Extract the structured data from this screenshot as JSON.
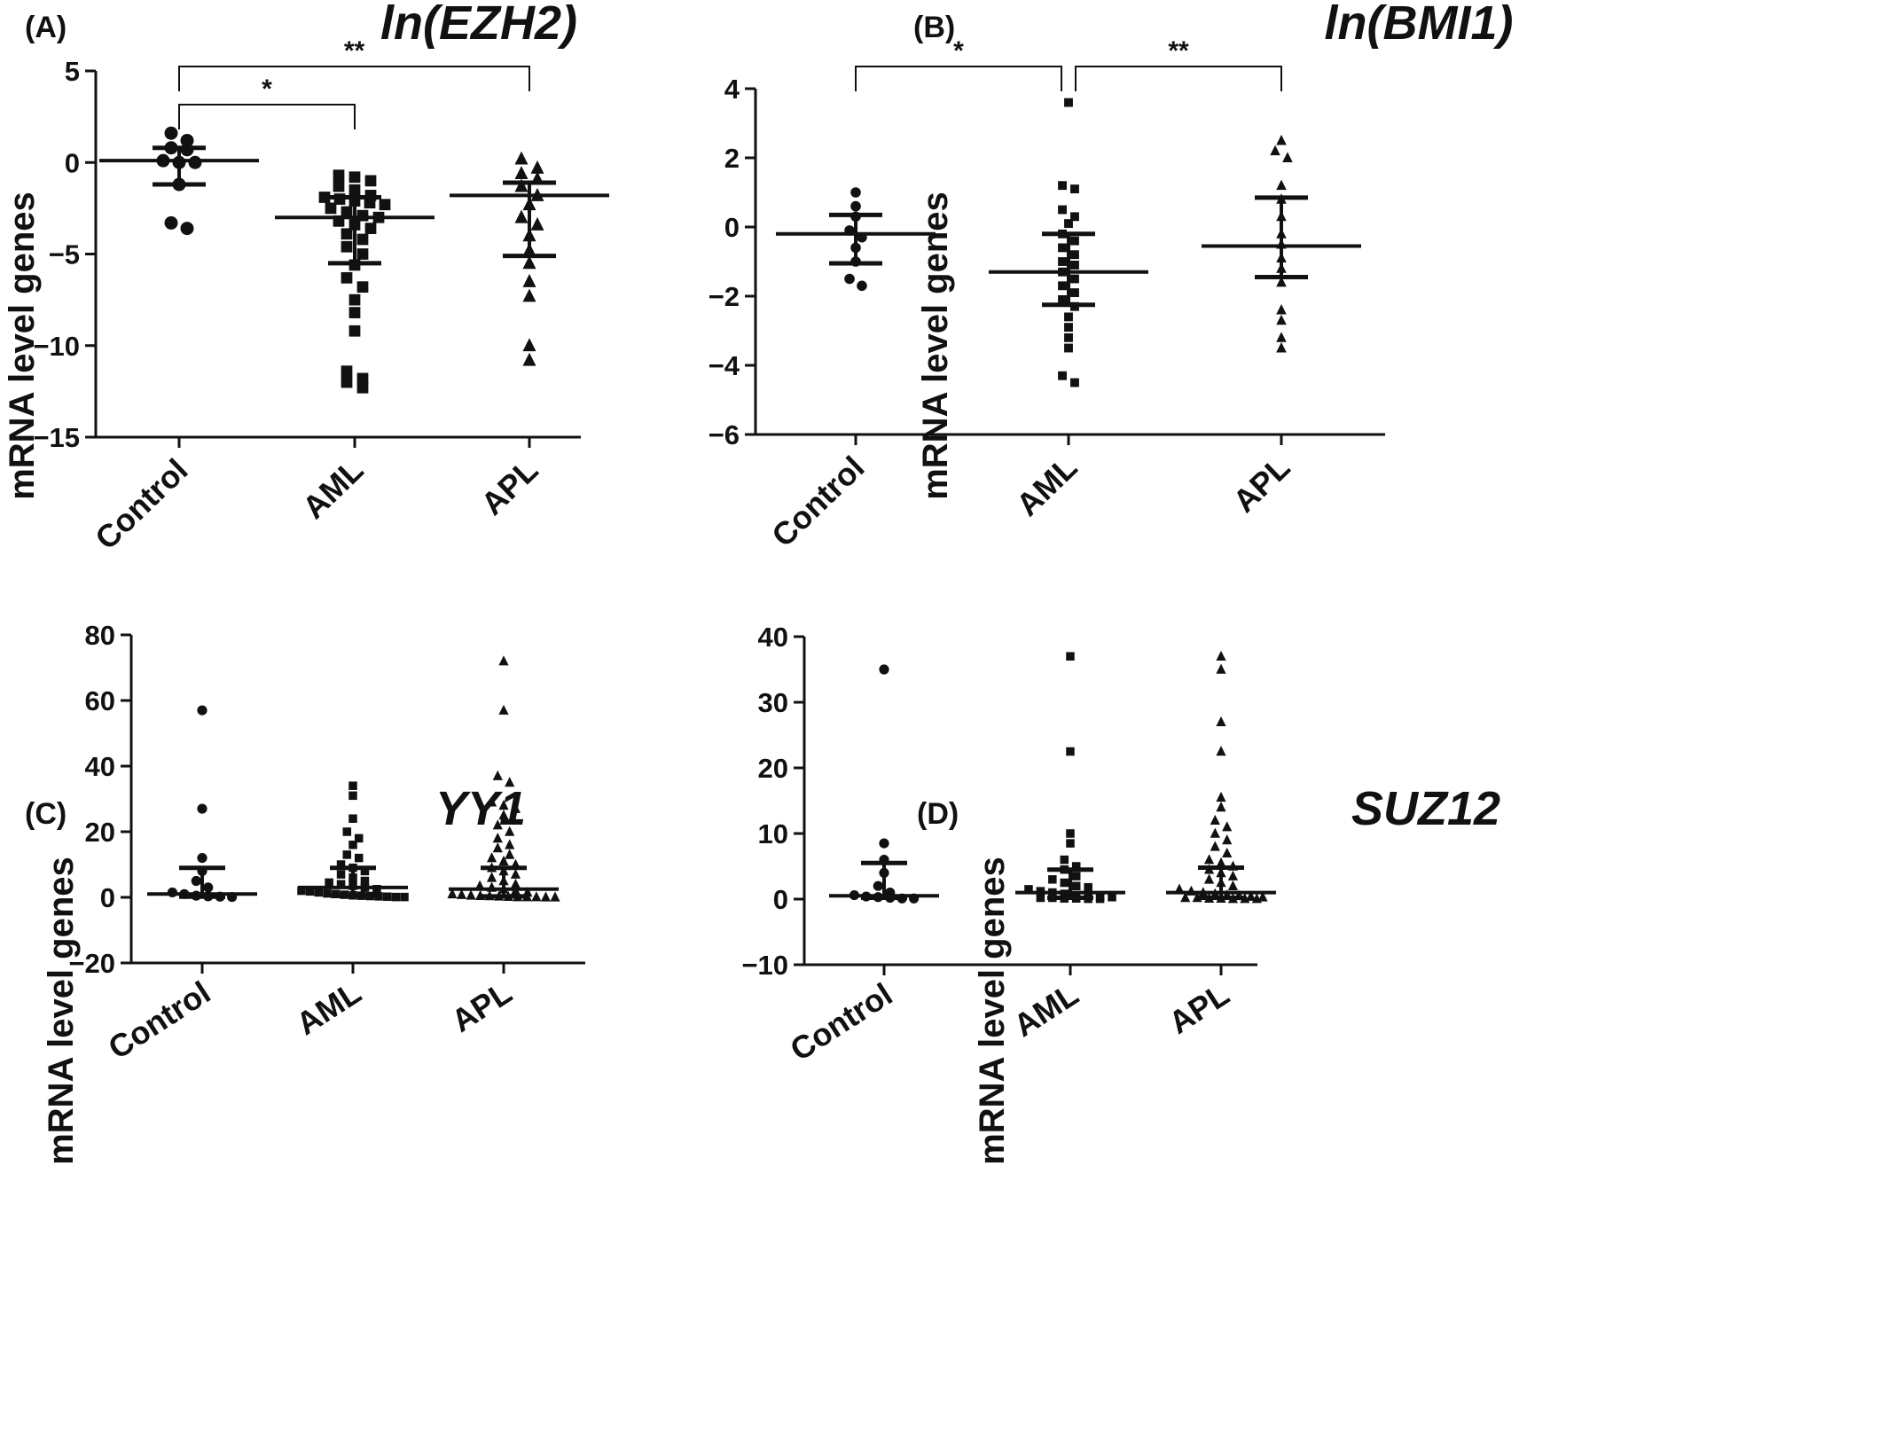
{
  "chart_data": [
    {
      "panel": "(A)",
      "type": "scatter",
      "title": "ln(EZH2)",
      "ylabel": "mRNA level genes",
      "categories": [
        "Control",
        "AML",
        "APL"
      ],
      "ylim": [
        -15,
        5
      ],
      "yticks": [
        5,
        0,
        -5,
        -10,
        -15
      ],
      "ytick_labels": [
        "5",
        "0",
        "−5",
        "−10",
        "−15"
      ],
      "series": [
        {
          "category": "Control",
          "marker": "circle",
          "values": [
            1.6,
            1.2,
            0.8,
            0.7,
            0.1,
            0.0,
            0.0,
            -1.2,
            -3.3,
            -3.6
          ],
          "median": 0.1,
          "q_low": -1.2,
          "q_high": 0.8
        },
        {
          "category": "AML",
          "marker": "square",
          "values": [
            -0.7,
            -0.8,
            -1.0,
            -1.3,
            -1.5,
            -1.8,
            -1.9,
            -2.0,
            -2.1,
            -2.2,
            -2.3,
            -2.5,
            -2.7,
            -2.9,
            -3.0,
            -3.2,
            -3.4,
            -3.6,
            -3.9,
            -4.2,
            -4.6,
            -5.0,
            -5.6,
            -6.3,
            -6.8,
            -7.5,
            -8.2,
            -9.2,
            -11.4,
            -11.8,
            -12.0,
            -12.3
          ],
          "median": -3.0,
          "q_low": -5.5,
          "q_high": -1.9
        },
        {
          "category": "APL",
          "marker": "triangle",
          "values": [
            0.2,
            -0.3,
            -0.6,
            -0.9,
            -1.3,
            -1.8,
            -2.3,
            -3.0,
            -3.4,
            -4.0,
            -4.8,
            -5.5,
            -6.5,
            -7.3,
            -10.0,
            -10.8
          ],
          "median": -1.8,
          "q_low": -5.1,
          "q_high": -1.1
        }
      ],
      "significance": [
        {
          "from": "Control",
          "to": "AML",
          "label": "*"
        },
        {
          "from": "Control",
          "to": "APL",
          "label": "**"
        }
      ]
    },
    {
      "panel": "(B)",
      "type": "scatter",
      "title": "ln(BMI1)",
      "ylabel": "mRNA level genes",
      "categories": [
        "Control",
        "AML",
        "APL"
      ],
      "ylim": [
        -6,
        4
      ],
      "yticks": [
        4,
        2,
        0,
        -2,
        -4,
        -6
      ],
      "ytick_labels": [
        "4",
        "2",
        "0",
        "−2",
        "−4",
        "−6"
      ],
      "series": [
        {
          "category": "Control",
          "marker": "circle",
          "values": [
            1.0,
            0.6,
            0.3,
            -0.1,
            -0.3,
            -0.6,
            -1.0,
            -1.5,
            -1.7
          ],
          "median": -0.2,
          "q_low": -1.05,
          "q_high": 0.35
        },
        {
          "category": "AML",
          "marker": "square",
          "values": [
            3.6,
            1.2,
            1.1,
            0.5,
            0.3,
            0.1,
            -0.2,
            -0.4,
            -0.6,
            -0.8,
            -1.0,
            -1.1,
            -1.3,
            -1.5,
            -1.7,
            -1.9,
            -2.1,
            -2.3,
            -2.6,
            -2.9,
            -3.2,
            -3.5,
            -4.3,
            -4.5
          ],
          "median": -1.3,
          "q_low": -2.25,
          "q_high": -0.2
        },
        {
          "category": "APL",
          "marker": "triangle",
          "values": [
            2.5,
            2.2,
            2.0,
            1.2,
            0.8,
            0.3,
            -0.2,
            -0.5,
            -0.9,
            -1.2,
            -1.6,
            -2.4,
            -2.7,
            -3.2,
            -3.5
          ],
          "median": -0.55,
          "q_low": -1.45,
          "q_high": 0.85
        }
      ],
      "significance": [
        {
          "from": "Control",
          "to": "AML",
          "label": "*"
        },
        {
          "from": "AML",
          "to": "APL",
          "label": "**"
        }
      ]
    },
    {
      "panel": "(C)",
      "type": "scatter",
      "title": "YY1",
      "ylabel": "mRNA level genes",
      "categories": [
        "Control",
        "AML",
        "APL"
      ],
      "ylim": [
        -20,
        80
      ],
      "yticks": [
        80,
        60,
        40,
        20,
        0,
        -20
      ],
      "ytick_labels": [
        "80",
        "60",
        "40",
        "20",
        "0",
        "−20"
      ],
      "series": [
        {
          "category": "Control",
          "marker": "circle",
          "values": [
            57,
            27,
            12,
            8,
            5,
            3,
            1.5,
            1,
            0.5,
            0.3,
            0.2,
            0.1
          ],
          "median": 1.0,
          "q_low": 0.2,
          "q_high": 9.0
        },
        {
          "category": "AML",
          "marker": "square",
          "values": [
            34,
            31,
            24,
            20,
            18,
            16,
            13,
            12,
            10,
            9,
            8,
            7,
            6,
            5,
            4.5,
            4,
            3.5,
            3,
            2.5,
            2,
            1.8,
            1.5,
            1.2,
            1,
            0.8,
            0.6,
            0.5,
            0.4,
            0.3,
            0.2,
            0.1,
            0.1
          ],
          "median": 3.0,
          "q_low": 0.5,
          "q_high": 9.0
        },
        {
          "category": "APL",
          "marker": "triangle",
          "values": [
            72,
            57,
            37,
            35,
            29,
            28,
            27,
            25,
            22,
            20,
            18,
            16,
            15,
            13,
            12,
            11,
            10,
            9,
            8,
            7,
            6,
            5,
            4,
            3.5,
            3,
            2.5,
            2,
            1.5,
            1,
            0.8,
            0.6,
            0.5,
            0.4,
            0.3,
            0.2,
            0.1,
            0.1,
            0.1,
            0.05,
            0.05
          ],
          "median": 2.5,
          "q_low": 0.3,
          "q_high": 9.0
        }
      ]
    },
    {
      "panel": "(D)",
      "type": "scatter",
      "title": "SUZ12",
      "ylabel": "mRNA level genes",
      "categories": [
        "Control",
        "AML",
        "APL"
      ],
      "ylim": [
        -10,
        40
      ],
      "yticks": [
        40,
        30,
        20,
        10,
        0,
        -10
      ],
      "ytick_labels": [
        "40",
        "30",
        "20",
        "10",
        "0",
        "−10"
      ],
      "series": [
        {
          "category": "Control",
          "marker": "circle",
          "values": [
            35,
            8.5,
            6,
            4,
            2,
            1,
            0.6,
            0.4,
            0.3,
            0.2,
            0.1,
            0.1
          ],
          "median": 0.5,
          "q_low": 0.2,
          "q_high": 5.5
        },
        {
          "category": "AML",
          "marker": "square",
          "values": [
            37,
            22.5,
            10,
            8.5,
            6,
            5,
            4.5,
            3.5,
            3,
            2.5,
            2,
            1.8,
            1.5,
            1.2,
            1,
            0.8,
            0.6,
            0.5,
            0.4,
            0.3,
            0.2,
            0.2,
            0.1,
            0.1,
            0.05,
            0.05
          ],
          "median": 1.0,
          "q_low": 0.2,
          "q_high": 4.5
        },
        {
          "category": "APL",
          "marker": "triangle",
          "values": [
            37,
            35,
            27,
            22.5,
            15.5,
            14,
            12,
            11,
            10,
            9,
            8,
            7,
            6,
            5.5,
            5,
            4.5,
            4,
            3.5,
            3,
            2.5,
            2,
            1.5,
            1.2,
            1,
            0.8,
            0.6,
            0.5,
            0.4,
            0.3,
            0.2,
            0.2,
            0.1,
            0.1,
            0.05,
            0.05,
            0.05
          ],
          "median": 1.0,
          "q_low": 0.2,
          "q_high": 4.8
        }
      ]
    }
  ]
}
